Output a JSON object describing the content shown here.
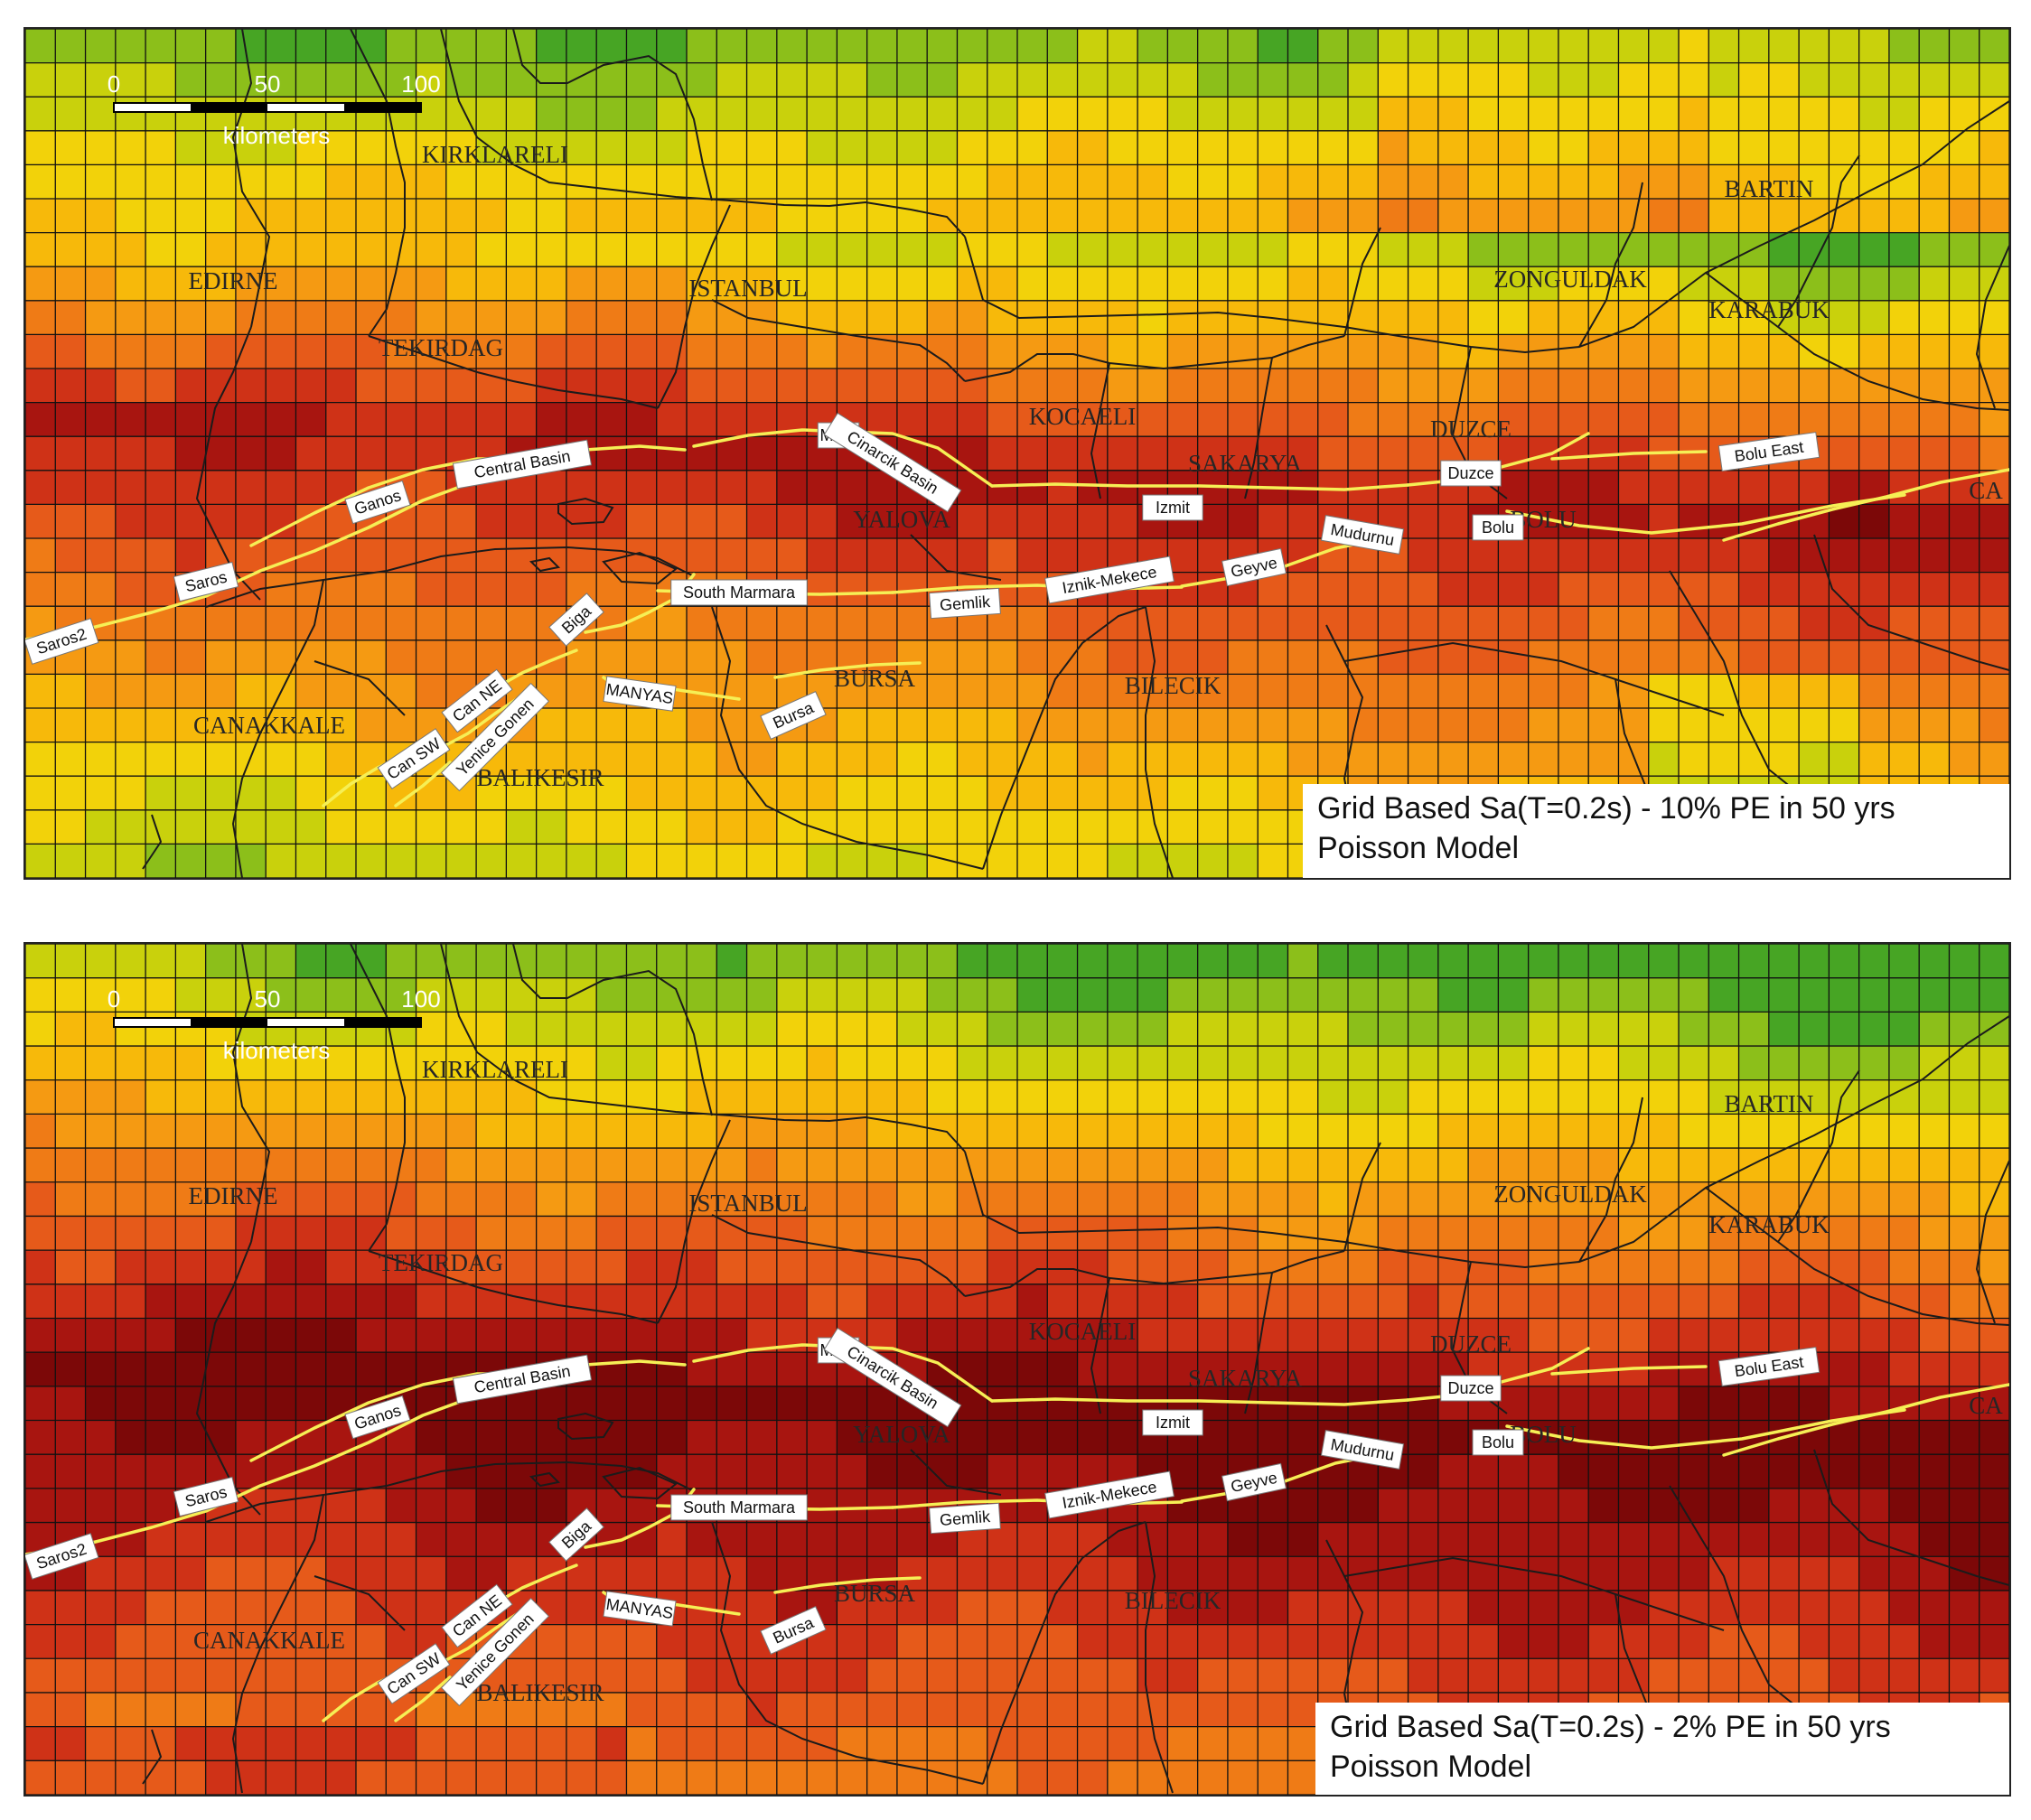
{
  "panels": [
    {
      "id": "top",
      "caption_line1": "Grid Based Sa(T=0.2s) - 10% PE in 50 yrs",
      "caption_line2": "Poisson Model",
      "hazard_level": "10%"
    },
    {
      "id": "bottom",
      "caption_line1": "Grid Based Sa(T=0.2s) - 2% PE in 50 yrs",
      "caption_line2": "Poisson Model",
      "hazard_level": "2%"
    }
  ],
  "scale_bar": {
    "ticks": [
      "0",
      "50",
      "100"
    ],
    "unit": "kilometers"
  },
  "provinces": [
    "KIRKLARELI",
    "EDIRNE",
    "ISTANBUL",
    "TEKIRDAG",
    "KOCAELI",
    "SAKARYA",
    "DUZCE",
    "YALOVA",
    "BOLU",
    "ZONGULDAK",
    "BARTIN",
    "KARABUK",
    "CANAKKALE",
    "BALIKESIR",
    "BURSA",
    "BILECIK",
    "CA"
  ],
  "faults": [
    "Saros2",
    "Saros",
    "Ganos",
    "Central Basin",
    "MMF",
    "Cinarcik Basin",
    "Izmit",
    "Duzce",
    "Bolu East",
    "Mudurnu",
    "Bolu",
    "Geyve",
    "Iznik-Mekece",
    "Gemlik",
    "South Marmara",
    "Biga",
    "Can NE",
    "Can SW",
    "Yenice Gonen",
    "MANYAS",
    "Bursa"
  ],
  "colors": {
    "ramp": [
      "#2e9a26",
      "#47a524",
      "#8cbf1a",
      "#c9d10c",
      "#f2d20a",
      "#f7b90a",
      "#f59a12",
      "#ef7b16",
      "#e65a1a",
      "#cf3217",
      "#a81510",
      "#7c0808"
    ],
    "grid_line": "#111111",
    "boundary": "#1b1b1b",
    "fault": "#f6ef55",
    "label_bg": "#ffffff",
    "province_text": "#262626"
  }
}
